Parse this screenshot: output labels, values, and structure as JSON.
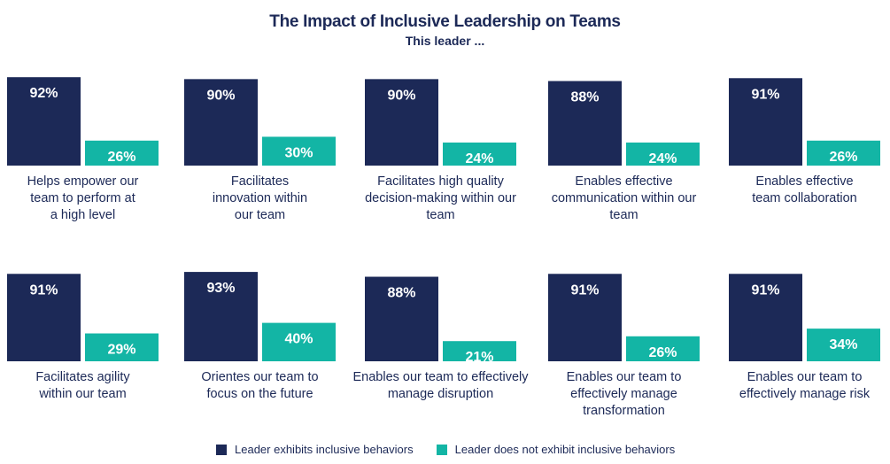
{
  "header": {
    "title": "The Impact of Inclusive Leadership on Teams",
    "subtitle": "This leader ..."
  },
  "colors": {
    "inclusive": "#1c2957",
    "not_inclusive": "#13b5a5"
  },
  "legend": {
    "inclusive_label": "Leader exhibits inclusive behaviors",
    "not_inclusive_label": "Leader does not exhibit inclusive behaviors"
  },
  "chart_data": {
    "type": "bar",
    "ylim": [
      0,
      100
    ],
    "series": [
      {
        "name": "Leader exhibits inclusive behaviors"
      },
      {
        "name": "Leader does not exhibit inclusive behaviors"
      }
    ],
    "panels": [
      {
        "category": "Helps empower our\nteam to perform at\na high level",
        "inclusive": 92,
        "not_inclusive": 26,
        "inclusive_label": "92%",
        "not_inclusive_label": "26%"
      },
      {
        "category": "Facilitates\ninnovation within\nour team",
        "inclusive": 90,
        "not_inclusive": 30,
        "inclusive_label": "90%",
        "not_inclusive_label": "30%"
      },
      {
        "category": "Facilitates high quality\ndecision-making within our\nteam",
        "inclusive": 90,
        "not_inclusive": 24,
        "inclusive_label": "90%",
        "not_inclusive_label": "24%"
      },
      {
        "category": "Enables effective\ncommunication within our\nteam",
        "inclusive": 88,
        "not_inclusive": 24,
        "inclusive_label": "88%",
        "not_inclusive_label": "24%"
      },
      {
        "category": "Enables effective\nteam collaboration",
        "inclusive": 91,
        "not_inclusive": 26,
        "inclusive_label": "91%",
        "not_inclusive_label": "26%"
      },
      {
        "category": "Facilitates agility\nwithin our team",
        "inclusive": 91,
        "not_inclusive": 29,
        "inclusive_label": "91%",
        "not_inclusive_label": "29%"
      },
      {
        "category": "Orientes our team to\nfocus on the future",
        "inclusive": 93,
        "not_inclusive": 40,
        "inclusive_label": "93%",
        "not_inclusive_label": "40%"
      },
      {
        "category": "Enables our team to effectively\nmanage disruption",
        "inclusive": 88,
        "not_inclusive": 21,
        "inclusive_label": "88%",
        "not_inclusive_label": "21%"
      },
      {
        "category": "Enables our team to\neffectively manage\ntransformation",
        "inclusive": 91,
        "not_inclusive": 26,
        "inclusive_label": "91%",
        "not_inclusive_label": "26%"
      },
      {
        "category": "Enables our team to\neffectively manage risk",
        "inclusive": 91,
        "not_inclusive": 34,
        "inclusive_label": "91%",
        "not_inclusive_label": "34%"
      }
    ]
  }
}
